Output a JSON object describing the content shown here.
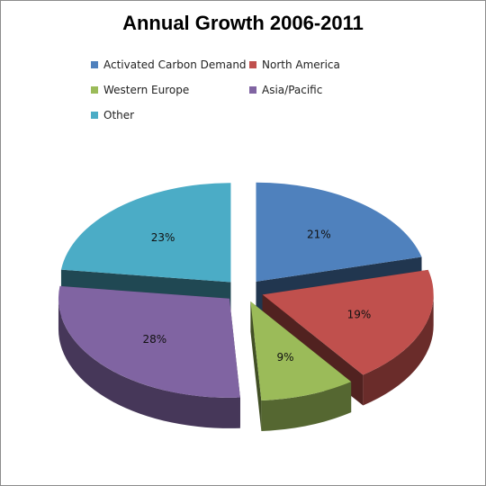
{
  "title": "Annual Growth 2006-2011",
  "legend": [
    {
      "label": "Activated Carbon Demand",
      "color": "#4f81bd"
    },
    {
      "label": "North America",
      "color": "#c0504d"
    },
    {
      "label": "Western Europe",
      "color": "#9bbb59"
    },
    {
      "label": "Asia/Pacific",
      "color": "#8064a2"
    },
    {
      "label": "Other",
      "color": "#4bacc6"
    }
  ],
  "chart_data": {
    "type": "pie",
    "title": "Annual Growth 2006-2011",
    "categories": [
      "Activated Carbon Demand",
      "North America",
      "Western Europe",
      "Asia/Pacific",
      "Other"
    ],
    "values": [
      21,
      19,
      9,
      28,
      23
    ],
    "labels": [
      "21%",
      "19%",
      "9%",
      "28%",
      "23%"
    ],
    "colors": [
      "#4f81bd",
      "#c0504d",
      "#9bbb59",
      "#8064a2",
      "#4bacc6"
    ],
    "style": "3d-exploded",
    "legend_position": "top"
  }
}
